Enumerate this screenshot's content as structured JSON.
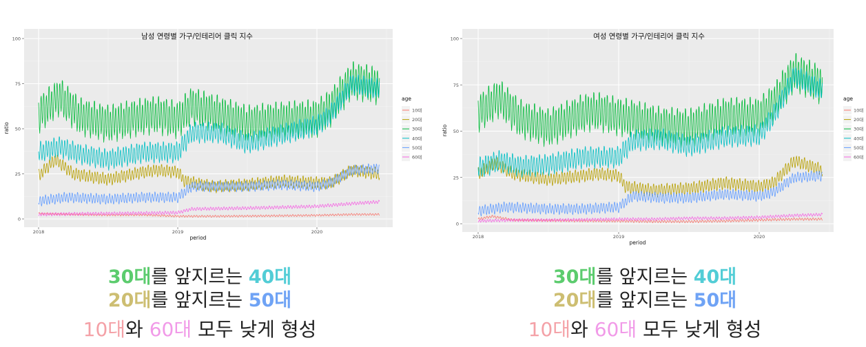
{
  "chart_data": [
    {
      "type": "line",
      "title": "남성 연령별 가구/인테리어 클릭 지수",
      "xlabel": "period",
      "ylabel": "ratio",
      "ylim": [
        0,
        100
      ],
      "xlim": [
        2018.0,
        2020.55
      ],
      "x_ticks": [
        "2018",
        "2019",
        "2020"
      ],
      "y_ticks": [
        "0",
        "25",
        "50",
        "75",
        "100"
      ],
      "legend_title": "age",
      "legend_position": "right",
      "grid": true,
      "series": [
        {
          "name": "10대",
          "color": "#F8766D",
          "x": [
            2018.0,
            2018.25,
            2018.5,
            2018.75,
            2019.0,
            2019.25,
            2019.5,
            2019.75,
            2020.0,
            2020.25,
            2020.45
          ],
          "values": [
            3,
            2.5,
            2.2,
            2.3,
            1.5,
            1.5,
            1.6,
            1.8,
            2,
            2.5,
            2.5
          ],
          "amp": 0.5
        },
        {
          "name": "20대",
          "color": "#B79F00",
          "x": [
            2018.0,
            2018.12,
            2018.25,
            2018.5,
            2018.75,
            2018.85,
            2019.0,
            2019.05,
            2019.25,
            2019.5,
            2019.75,
            2020.0,
            2020.1,
            2020.25,
            2020.45
          ],
          "values": [
            24,
            33,
            25,
            22,
            26,
            27,
            26,
            21,
            18,
            19,
            21,
            20,
            20,
            27,
            25
          ],
          "amp": 3
        },
        {
          "name": "30대",
          "color": "#00BA38",
          "x": [
            2018.0,
            2018.15,
            2018.3,
            2018.5,
            2018.75,
            2018.85,
            2019.0,
            2019.1,
            2019.3,
            2019.5,
            2019.75,
            2020.0,
            2020.1,
            2020.25,
            2020.45
          ],
          "values": [
            58,
            68,
            57,
            53,
            57,
            58,
            55,
            63,
            58,
            53,
            55,
            56,
            62,
            77,
            74
          ],
          "amp": 9
        },
        {
          "name": "40대",
          "color": "#00BFC4",
          "x": [
            2018.0,
            2018.15,
            2018.3,
            2018.5,
            2018.75,
            2019.0,
            2019.1,
            2019.3,
            2019.5,
            2019.75,
            2020.0,
            2020.1,
            2020.25,
            2020.45
          ],
          "values": [
            37,
            40,
            36,
            33,
            37,
            37,
            48,
            48,
            42,
            47,
            52,
            58,
            75,
            72
          ],
          "amp": 5
        },
        {
          "name": "50대",
          "color": "#619CFF",
          "x": [
            2018.0,
            2018.2,
            2018.5,
            2018.75,
            2019.0,
            2019.1,
            2019.3,
            2019.5,
            2019.75,
            2020.0,
            2020.1,
            2020.25,
            2020.45
          ],
          "values": [
            10,
            12,
            11,
            12,
            12,
            18,
            18,
            18,
            19,
            18,
            20,
            27,
            28
          ],
          "amp": 2.5
        },
        {
          "name": "60대",
          "color": "#F564E3",
          "x": [
            2018.0,
            2018.25,
            2018.5,
            2018.75,
            2019.0,
            2019.1,
            2019.5,
            2019.75,
            2020.0,
            2020.25,
            2020.45
          ],
          "values": [
            2.5,
            2.8,
            3,
            3.2,
            3.5,
            5.5,
            6,
            6.5,
            7,
            8.5,
            9.5
          ],
          "amp": 0.8
        }
      ]
    },
    {
      "type": "line",
      "title": "여성 연령별 가구/인테리어 클릭 지수",
      "xlabel": "period",
      "ylabel": "ratio",
      "ylim": [
        0,
        100
      ],
      "xlim": [
        2018.0,
        2020.55
      ],
      "x_ticks": [
        "2018",
        "2019",
        "2020"
      ],
      "y_ticks": [
        "0",
        "25",
        "50",
        "75",
        "100"
      ],
      "legend_title": "age",
      "legend_position": "right",
      "grid": true,
      "series": [
        {
          "name": "10대",
          "color": "#F8766D",
          "x": [
            2018.0,
            2018.1,
            2018.25,
            2018.5,
            2019.0,
            2019.25,
            2019.5,
            2019.75,
            2020.0,
            2020.25,
            2020.45
          ],
          "values": [
            2.5,
            4,
            2,
            1.8,
            1.5,
            1.2,
            1.2,
            1.5,
            2,
            2.5,
            2.5
          ],
          "amp": 0.6
        },
        {
          "name": "20대",
          "color": "#B79F00",
          "x": [
            2018.0,
            2018.12,
            2018.25,
            2018.5,
            2018.75,
            2018.85,
            2019.0,
            2019.05,
            2019.25,
            2019.5,
            2019.75,
            2020.0,
            2020.1,
            2020.25,
            2020.45
          ],
          "values": [
            27,
            33,
            27,
            24,
            26,
            27,
            26,
            20,
            18,
            19,
            22,
            20,
            22,
            34,
            29
          ],
          "amp": 3
        },
        {
          "name": "30대",
          "color": "#00BA38",
          "x": [
            2018.0,
            2018.15,
            2018.3,
            2018.5,
            2018.75,
            2018.85,
            2019.0,
            2019.1,
            2019.3,
            2019.5,
            2019.75,
            2020.0,
            2020.1,
            2020.25,
            2020.45
          ],
          "values": [
            60,
            68,
            57,
            52,
            60,
            61,
            58,
            57,
            53,
            52,
            58,
            58,
            65,
            82,
            75
          ],
          "amp": 9
        },
        {
          "name": "40대",
          "color": "#00BFC4",
          "x": [
            2018.0,
            2018.15,
            2018.3,
            2018.5,
            2018.75,
            2019.0,
            2019.1,
            2019.3,
            2019.5,
            2019.75,
            2020.0,
            2020.1,
            2020.25,
            2020.45
          ],
          "values": [
            30,
            34,
            31,
            32,
            36,
            36,
            45,
            46,
            42,
            47,
            48,
            58,
            80,
            72
          ],
          "amp": 5
        },
        {
          "name": "50대",
          "color": "#619CFF",
          "x": [
            2018.0,
            2018.2,
            2018.5,
            2018.75,
            2019.0,
            2019.1,
            2019.3,
            2019.5,
            2019.75,
            2020.0,
            2020.1,
            2020.25,
            2020.45
          ],
          "values": [
            7,
            9,
            8,
            8,
            9,
            15,
            14,
            14,
            16,
            15,
            17,
            25,
            26
          ],
          "amp": 2.5
        },
        {
          "name": "60대",
          "color": "#F564E3",
          "x": [
            2018.0,
            2018.25,
            2018.5,
            2018.75,
            2019.0,
            2019.25,
            2019.5,
            2019.75,
            2020.0,
            2020.25,
            2020.45
          ],
          "values": [
            1.5,
            2,
            2,
            2.2,
            2.5,
            2.5,
            3,
            3,
            3.5,
            4.5,
            5
          ],
          "amp": 0.7
        }
      ]
    }
  ],
  "captions": [
    {
      "line1": {
        "a": "30대",
        "b": "를 앞지르는 ",
        "c": "40대"
      },
      "line2": {
        "a": "20대",
        "b": "를 앞지르는 ",
        "c": "50대"
      },
      "line3": {
        "a": "10대",
        "b": "와 ",
        "c": "60대",
        "d": " 모두 낮게 형성"
      }
    },
    {
      "line1": {
        "a": "30대",
        "b": "를 앞지르는 ",
        "c": "40대"
      },
      "line2": {
        "a": "20대",
        "b": "를 앞지르는 ",
        "c": "50대"
      },
      "line3": {
        "a": "10대",
        "b": "와 ",
        "c": "60대",
        "d": " 모두 낮게 형성"
      }
    }
  ],
  "colors": {
    "c30": "#5ccc6e",
    "c40": "#52cdd6",
    "c20": "#cdbe72",
    "c50": "#6fa3f5",
    "c10": "#f4a1a7",
    "c60": "#f19ae8"
  }
}
